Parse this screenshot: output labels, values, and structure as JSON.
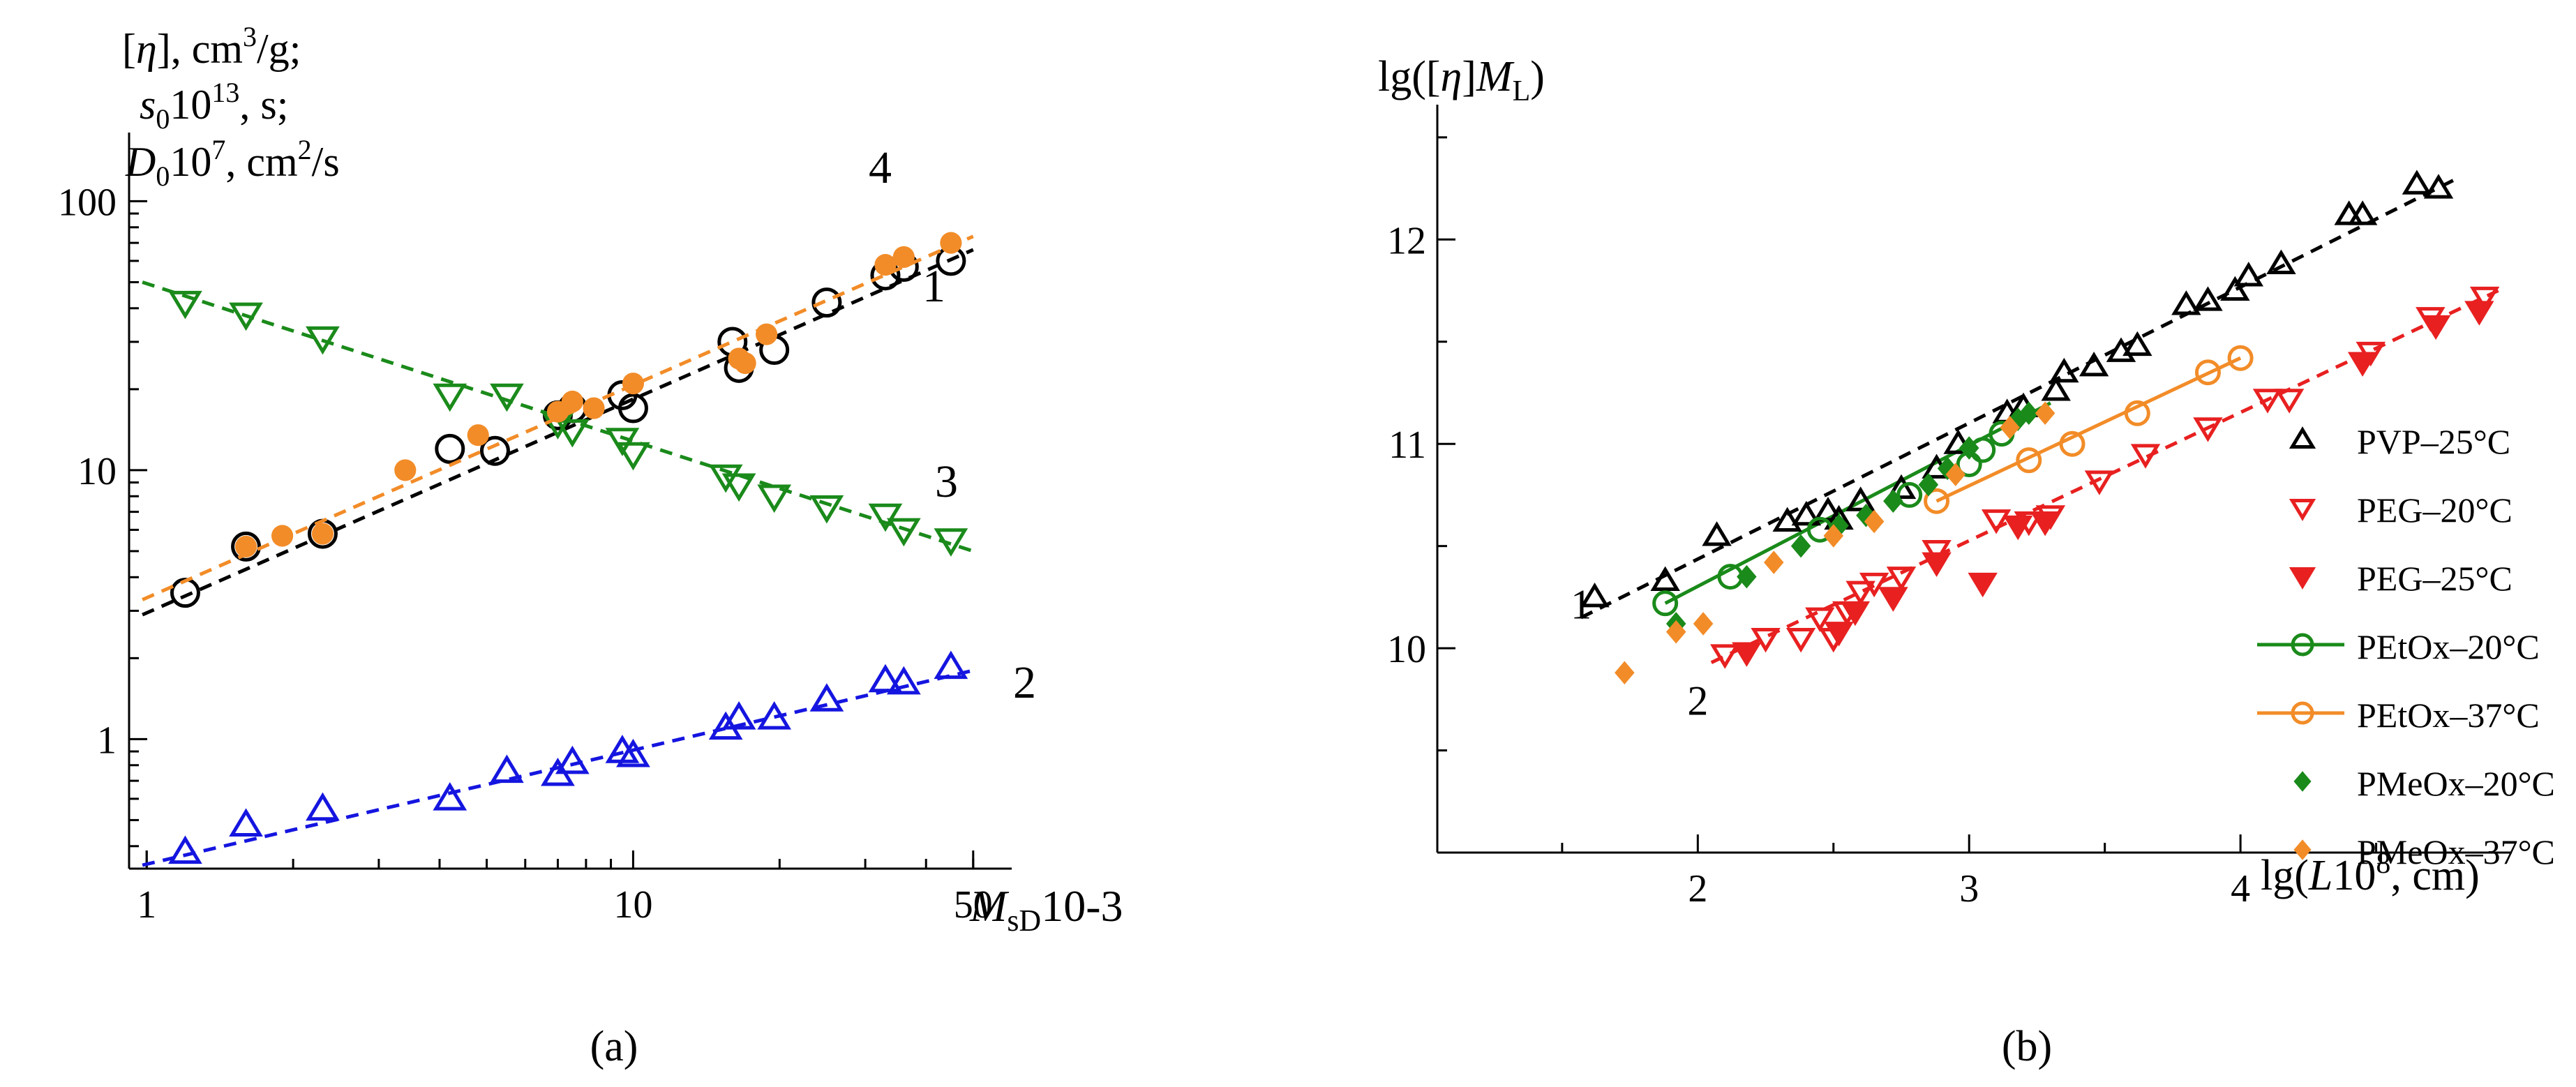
{
  "panel_labels": {
    "a": "(a)",
    "b": "(b)"
  },
  "chart_data": [
    {
      "type": "scatter",
      "panel": "a",
      "scale": "log-log",
      "xlim": [
        0.92,
        60
      ],
      "ylim": [
        0.33,
        180
      ],
      "xlabel": {
        "main": "M",
        "sub": "sD",
        "suffix": "10-3"
      },
      "ylabel_lines": [
        {
          "main": "[",
          "italic": "η",
          "tail": "], cm",
          "sup": "3",
          "end": "/g;"
        },
        {
          "main": "",
          "italic": "s",
          "sub": "0",
          "tail": "10",
          "sup": "13",
          "end": ", s;"
        },
        {
          "main": "",
          "italic": "D",
          "sub": "0",
          "tail": "10",
          "sup": "7",
          "end": ", cm",
          "sup2": "2",
          "end2": "/s"
        }
      ],
      "x_ticks": [
        {
          "value": 1,
          "label": "1"
        },
        {
          "value": 10,
          "label": "10"
        },
        {
          "value": 50,
          "label": "50"
        }
      ],
      "y_ticks": [
        {
          "value": 1,
          "label": "1"
        },
        {
          "value": 10,
          "label": "10"
        },
        {
          "value": 100,
          "label": "100"
        }
      ],
      "series": [
        {
          "name": "1",
          "marker": "circle-open",
          "color": "#000000",
          "points": [
            [
              1.2,
              3.5
            ],
            [
              1.6,
              5.2
            ],
            [
              2.3,
              5.8
            ],
            [
              4.2,
              12
            ],
            [
              5.2,
              11.8
            ],
            [
              7,
              16
            ],
            [
              7.5,
              17
            ],
            [
              9.5,
              19
            ],
            [
              10,
              17
            ],
            [
              16,
              30
            ],
            [
              16.5,
              24
            ],
            [
              19.5,
              28
            ],
            [
              25,
              42
            ],
            [
              33,
              53
            ],
            [
              36,
              57
            ],
            [
              45,
              60
            ]
          ],
          "fit": {
            "x": [
              0.98,
              50
            ],
            "y": [
              2.9,
              66
            ]
          },
          "fit_label": "1"
        },
        {
          "name": "2",
          "marker": "triangle-up-open",
          "color": "#1515e0",
          "points": [
            [
              1.2,
              0.38
            ],
            [
              1.6,
              0.48
            ],
            [
              2.3,
              0.55
            ],
            [
              4.2,
              0.6
            ],
            [
              5.5,
              0.76
            ],
            [
              7,
              0.74
            ],
            [
              7.5,
              0.82
            ],
            [
              9.5,
              0.9
            ],
            [
              10,
              0.87
            ],
            [
              15.5,
              1.1
            ],
            [
              16.5,
              1.2
            ],
            [
              19.5,
              1.2
            ],
            [
              25,
              1.4
            ],
            [
              33,
              1.65
            ],
            [
              36,
              1.62
            ],
            [
              45,
              1.85
            ]
          ],
          "fit": {
            "x": [
              0.98,
              50
            ],
            "y": [
              0.34,
              1.8
            ]
          },
          "fit_label": "2"
        },
        {
          "name": "3",
          "marker": "triangle-down-open",
          "color": "#1a8a1a",
          "points": [
            [
              1.2,
              42
            ],
            [
              1.6,
              38
            ],
            [
              2.3,
              31
            ],
            [
              4.2,
              19
            ],
            [
              5.5,
              19
            ],
            [
              7,
              15
            ],
            [
              7.5,
              14
            ],
            [
              9.5,
              13
            ],
            [
              10,
              11.5
            ],
            [
              15.5,
              9.5
            ],
            [
              16.5,
              8.8
            ],
            [
              19.5,
              8
            ],
            [
              25,
              7.3
            ],
            [
              33,
              6.8
            ],
            [
              36,
              6
            ],
            [
              45,
              5.5
            ]
          ],
          "fit": {
            "x": [
              0.98,
              50
            ],
            "y": [
              50,
              5
            ]
          },
          "fit_label": "3"
        },
        {
          "name": "4",
          "marker": "circle-filled",
          "color": "#f28c28",
          "points": [
            [
              1.6,
              5.2
            ],
            [
              1.9,
              5.7
            ],
            [
              2.3,
              5.8
            ],
            [
              3.4,
              10
            ],
            [
              4.8,
              13.5
            ],
            [
              7,
              16.5
            ],
            [
              7.5,
              18
            ],
            [
              8.3,
              17
            ],
            [
              10,
              21
            ],
            [
              16.5,
              26
            ],
            [
              17,
              25
            ],
            [
              18.8,
              32
            ],
            [
              33,
              58
            ],
            [
              36,
              62
            ],
            [
              45,
              70
            ]
          ],
          "fit": {
            "x": [
              0.98,
              50
            ],
            "y": [
              3.3,
              74
            ]
          },
          "fit_label": "4"
        }
      ]
    },
    {
      "type": "scatter",
      "panel": "b",
      "scale": "linear",
      "xlim": [
        1.04,
        5.0
      ],
      "ylim": [
        9.0,
        12.66
      ],
      "xlabel": {
        "pre": "lg(",
        "italic": "L",
        "mid": "10",
        "sup": "8",
        "end": ", cm)"
      },
      "ylabel": {
        "pre": "lg([",
        "italic": "η",
        "mid": "]",
        "italic2": "M",
        "sub": "L",
        "end": ")"
      },
      "x_ticks": [
        {
          "value": 2,
          "label": "2"
        },
        {
          "value": 3,
          "label": "3"
        },
        {
          "value": 4,
          "label": "4"
        }
      ],
      "y_ticks": [
        {
          "value": 10,
          "label": "10"
        },
        {
          "value": 11,
          "label": "11"
        },
        {
          "value": 12,
          "label": "12"
        }
      ],
      "line_labels": [
        {
          "x": 1.57,
          "y": 10.22,
          "text": "1"
        },
        {
          "x": 2.0,
          "y": 9.75,
          "text": "2"
        }
      ],
      "series": [
        {
          "name": "PVP–25°C",
          "marker": "triangle-up-open",
          "color": "#000000",
          "points": [
            [
              1.62,
              10.25
            ],
            [
              1.88,
              10.33
            ],
            [
              2.07,
              10.55
            ],
            [
              2.33,
              10.62
            ],
            [
              2.4,
              10.65
            ],
            [
              2.48,
              10.67
            ],
            [
              2.52,
              10.63
            ],
            [
              2.6,
              10.72
            ],
            [
              2.75,
              10.78
            ],
            [
              2.88,
              10.88
            ],
            [
              2.96,
              11.0
            ],
            [
              3.14,
              11.15
            ],
            [
              3.2,
              11.18
            ],
            [
              3.32,
              11.26
            ],
            [
              3.35,
              11.35
            ],
            [
              3.46,
              11.38
            ],
            [
              3.56,
              11.45
            ],
            [
              3.62,
              11.48
            ],
            [
              3.8,
              11.68
            ],
            [
              3.88,
              11.7
            ],
            [
              3.98,
              11.75
            ],
            [
              4.03,
              11.82
            ],
            [
              4.15,
              11.88
            ],
            [
              4.4,
              12.12
            ],
            [
              4.45,
              12.12
            ],
            [
              4.65,
              12.27
            ],
            [
              4.73,
              12.25
            ]
          ],
          "fit": {
            "x": [
              1.57,
              4.8
            ],
            "y": [
              10.15,
              12.3
            ]
          }
        },
        {
          "name": "PEG–20°C",
          "marker": "triangle-down-open",
          "color": "#e82020",
          "points": [
            [
              2.1,
              9.97
            ],
            [
              2.25,
              10.05
            ],
            [
              2.38,
              10.05
            ],
            [
              2.45,
              10.15
            ],
            [
              2.5,
              10.05
            ],
            [
              2.55,
              10.18
            ],
            [
              2.6,
              10.28
            ],
            [
              2.65,
              10.32
            ],
            [
              2.72,
              10.25
            ],
            [
              2.75,
              10.35
            ],
            [
              2.88,
              10.48
            ],
            [
              3.1,
              10.63
            ],
            [
              3.22,
              10.62
            ],
            [
              3.3,
              10.65
            ],
            [
              3.48,
              10.82
            ],
            [
              3.65,
              10.95
            ],
            [
              3.88,
              11.08
            ],
            [
              4.1,
              11.22
            ],
            [
              4.18,
              11.22
            ],
            [
              4.48,
              11.45
            ],
            [
              4.7,
              11.62
            ],
            [
              4.9,
              11.72
            ]
          ],
          "fit": {
            "x": [
              2.05,
              4.95
            ],
            "y": [
              9.93,
              11.75
            ]
          }
        },
        {
          "name": "PEG–25°C",
          "marker": "triangle-down-filled",
          "color": "#e82020",
          "points": [
            [
              2.18,
              9.98
            ],
            [
              2.52,
              10.08
            ],
            [
              2.58,
              10.18
            ],
            [
              2.72,
              10.25
            ],
            [
              2.88,
              10.42
            ],
            [
              3.05,
              10.32
            ],
            [
              3.18,
              10.6
            ],
            [
              3.28,
              10.62
            ],
            [
              4.45,
              11.4
            ],
            [
              4.72,
              11.58
            ],
            [
              4.88,
              11.65
            ]
          ],
          "fit": null
        },
        {
          "name": "PEtOx–20°C",
          "marker": "circle-open",
          "color": "#1a8a1a",
          "points": [
            [
              1.88,
              10.22
            ],
            [
              2.12,
              10.35
            ],
            [
              2.45,
              10.58
            ],
            [
              2.78,
              10.75
            ],
            [
              3.0,
              10.9
            ],
            [
              3.05,
              10.97
            ],
            [
              3.12,
              11.05
            ]
          ],
          "fit": {
            "x": [
              1.88,
              3.3
            ],
            "y": [
              10.22,
              11.2
            ]
          }
        },
        {
          "name": "PEtOx–37°C",
          "marker": "circle-open",
          "color": "#f28c28",
          "points": [
            [
              2.88,
              10.72
            ],
            [
              3.22,
              10.92
            ],
            [
              3.38,
              11.0
            ],
            [
              3.62,
              11.15
            ],
            [
              3.88,
              11.35
            ],
            [
              4.0,
              11.42
            ]
          ],
          "fit": {
            "x": [
              2.88,
              4.0
            ],
            "y": [
              10.72,
              11.42
            ]
          }
        },
        {
          "name": "PMeOx–20°C",
          "marker": "diamond-filled",
          "color": "#1a8a1a",
          "points": [
            [
              1.92,
              10.12
            ],
            [
              2.18,
              10.35
            ],
            [
              2.38,
              10.5
            ],
            [
              2.52,
              10.6
            ],
            [
              2.62,
              10.65
            ],
            [
              2.72,
              10.72
            ],
            [
              2.85,
              10.8
            ],
            [
              2.92,
              10.88
            ],
            [
              3.0,
              10.98
            ],
            [
              3.18,
              11.12
            ],
            [
              3.22,
              11.15
            ]
          ],
          "fit": null
        },
        {
          "name": "PMeOx–37°C",
          "marker": "diamond-filled",
          "color": "#f28c28",
          "points": [
            [
              1.73,
              9.88
            ],
            [
              1.92,
              10.08
            ],
            [
              2.02,
              10.12
            ],
            [
              2.28,
              10.42
            ],
            [
              2.5,
              10.55
            ],
            [
              2.65,
              10.62
            ],
            [
              2.95,
              10.85
            ],
            [
              3.15,
              11.08
            ],
            [
              3.28,
              11.15
            ]
          ],
          "fit": null
        }
      ],
      "legend": [
        {
          "label": "PVP–25°C",
          "marker": "triangle-up-open",
          "color": "#000000",
          "line": false
        },
        {
          "label": "PEG–20°C",
          "marker": "triangle-down-open",
          "color": "#e82020",
          "line": false
        },
        {
          "label": "PEG–25°C",
          "marker": "triangle-down-filled",
          "color": "#e82020",
          "line": false
        },
        {
          "label": "PEtOx–20°C",
          "marker": "circle-open",
          "color": "#1a8a1a",
          "line": true
        },
        {
          "label": "PEtOx–37°C",
          "marker": "circle-open",
          "color": "#f28c28",
          "line": true
        },
        {
          "label": "PMeOx–20°C",
          "marker": "diamond-filled",
          "color": "#1a8a1a",
          "line": false
        },
        {
          "label": "PMeOx–37°C",
          "marker": "diamond-filled",
          "color": "#f28c28",
          "line": false
        }
      ]
    }
  ]
}
